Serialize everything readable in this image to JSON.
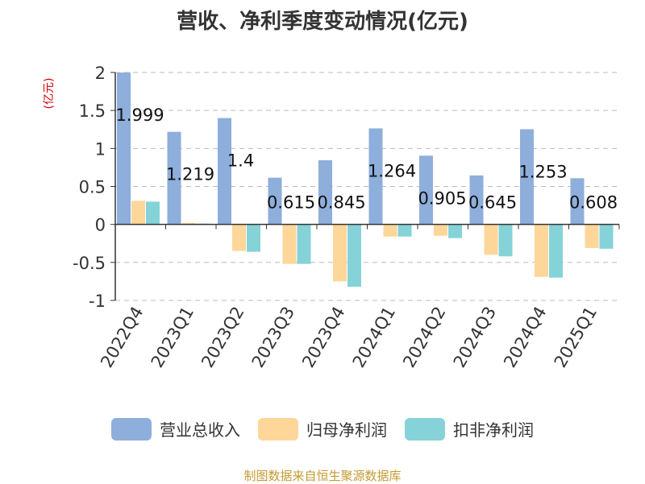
{
  "chart_data": {
    "type": "bar",
    "title": "营收、净利季度变动情况(亿元)",
    "unit_label": "(亿元)",
    "categories": [
      "2022Q4",
      "2023Q1",
      "2023Q2",
      "2023Q3",
      "2023Q4",
      "2024Q1",
      "2024Q2",
      "2024Q3",
      "2024Q4",
      "2025Q1"
    ],
    "series": [
      {
        "name": "营业总收入",
        "color": "#8eaedc",
        "values": [
          1.999,
          1.219,
          1.4,
          0.615,
          0.845,
          1.264,
          0.905,
          0.645,
          1.253,
          0.608
        ]
      },
      {
        "name": "归母净利润",
        "color": "#fdd699",
        "values": [
          0.31,
          0.02,
          -0.35,
          -0.52,
          -0.75,
          -0.16,
          -0.15,
          -0.4,
          -0.69,
          -0.31
        ]
      },
      {
        "name": "扣非净利润",
        "color": "#85d3d8",
        "values": [
          0.3,
          0.01,
          -0.36,
          -0.52,
          -0.82,
          -0.16,
          -0.18,
          -0.42,
          -0.7,
          -0.32
        ]
      }
    ],
    "data_labels": [
      "1.999",
      "1.219",
      "1.4",
      "0.615",
      "0.845",
      "1.264",
      "0.905",
      "0.645",
      "1.253",
      "0.608"
    ],
    "y_ticks": [
      "2",
      "1.5",
      "1",
      "0.5",
      "0",
      "-0.5",
      "-1"
    ],
    "ylim": [
      -1,
      2
    ],
    "grid": true,
    "legend_position": "bottom"
  },
  "footer": {
    "source": "制图数据来自恒生聚源数据库"
  }
}
